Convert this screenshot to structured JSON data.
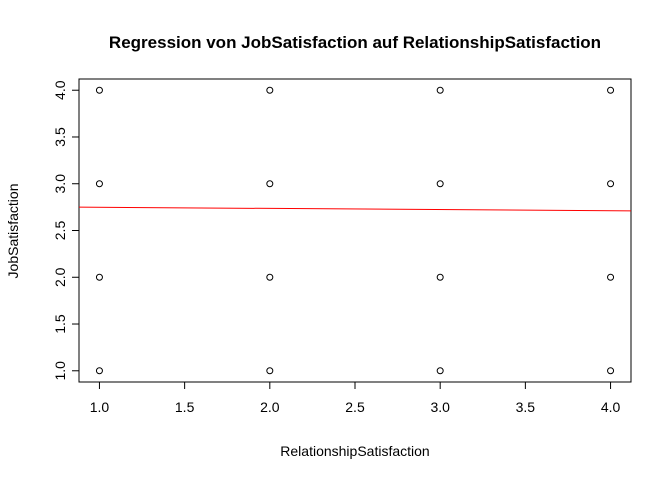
{
  "chart_data": {
    "type": "scatter",
    "title": "Regression von JobSatisfaction auf RelationshipSatisfaction",
    "xlabel": "RelationshipSatisfaction",
    "ylabel": "JobSatisfaction",
    "xlim": [
      0.88,
      4.12
    ],
    "ylim": [
      0.88,
      4.12
    ],
    "x_ticks": [
      "1.0",
      "1.5",
      "2.0",
      "2.5",
      "3.0",
      "3.5",
      "4.0"
    ],
    "y_ticks": [
      "1.0",
      "1.5",
      "2.0",
      "2.5",
      "3.0",
      "3.5",
      "4.0"
    ],
    "grid": false,
    "points": [
      {
        "x": 1,
        "y": 1
      },
      {
        "x": 1,
        "y": 2
      },
      {
        "x": 1,
        "y": 3
      },
      {
        "x": 1,
        "y": 4
      },
      {
        "x": 2,
        "y": 1
      },
      {
        "x": 2,
        "y": 2
      },
      {
        "x": 2,
        "y": 3
      },
      {
        "x": 2,
        "y": 4
      },
      {
        "x": 3,
        "y": 1
      },
      {
        "x": 3,
        "y": 2
      },
      {
        "x": 3,
        "y": 3
      },
      {
        "x": 3,
        "y": 4
      },
      {
        "x": 4,
        "y": 1
      },
      {
        "x": 4,
        "y": 2
      },
      {
        "x": 4,
        "y": 3
      },
      {
        "x": 4,
        "y": 4
      }
    ],
    "regression_line": {
      "x": [
        0.88,
        4.12
      ],
      "y": [
        2.75,
        2.71
      ],
      "color": "#ff0000"
    },
    "point_color": "#000000"
  }
}
